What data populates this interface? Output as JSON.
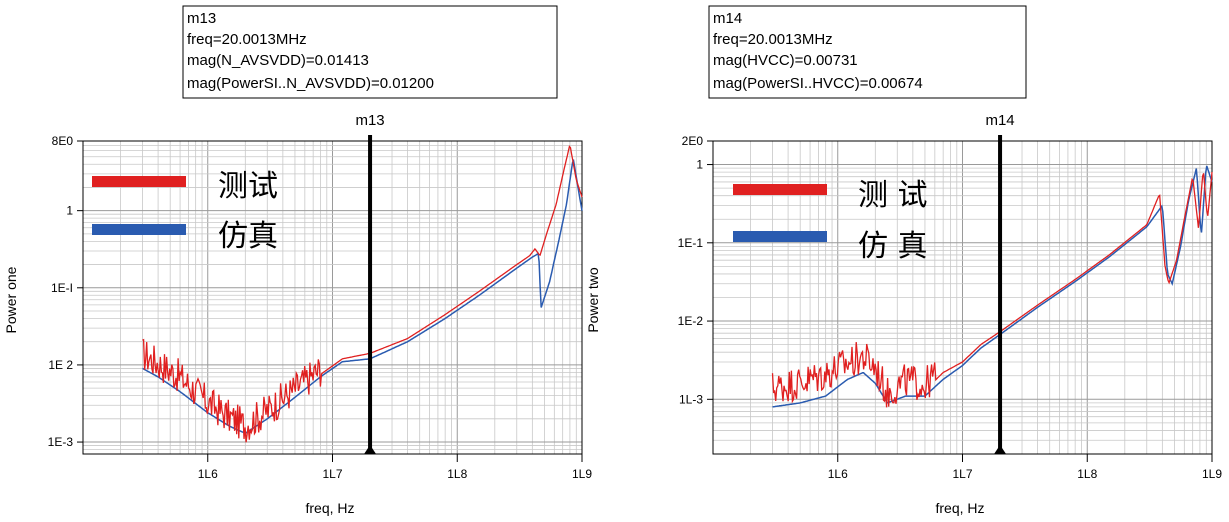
{
  "chart_data": [
    {
      "type": "line",
      "x_scale": "log",
      "y_scale": "log",
      "xlabel": "freq, Hz",
      "ylabel": "Power one",
      "ylim": [
        0.0007,
        8
      ],
      "xlim": [
        100000,
        1000000000
      ],
      "y_ticks": [
        {
          "v": 8,
          "label": "8E0"
        },
        {
          "v": 1,
          "label": "1"
        },
        {
          "v": 0.1,
          "label": "1E-I"
        },
        {
          "v": 0.01,
          "label": "1E 2"
        },
        {
          "v": 0.001,
          "label": "1E-3"
        }
      ],
      "x_ticks": [
        {
          "v": 1000000,
          "label": "1L6"
        },
        {
          "v": 10000000,
          "label": "1L7"
        },
        {
          "v": 100000000,
          "label": "1L8"
        },
        {
          "v": 1000000000,
          "label": "1L9"
        }
      ],
      "legend": [
        {
          "name": "测试",
          "color": "#e02020"
        },
        {
          "name": "仿真",
          "color": "#2a5bb0"
        }
      ],
      "marker": {
        "name": "m13",
        "x": 20001300,
        "lines": [
          "m13",
          "freq=20.0013MHz",
          "mag(N_AVSVDD)=0.01413",
          "mag(PowerSI..N_AVSVDD)=0.01200"
        ]
      },
      "series": [
        {
          "name": "测试",
          "color": "#e02020",
          "x": [
            300000,
            400000,
            600000,
            1000000,
            1500000,
            2000000,
            3000000,
            5000000,
            8000000,
            12000000,
            20000000,
            40000000,
            80000000,
            150000000,
            300000000,
            380000000,
            420000000,
            460000000,
            520000000,
            620000000,
            720000000,
            800000000,
            900000000,
            1000000000
          ],
          "y": [
            0.012,
            0.009,
            0.006,
            0.0028,
            0.0018,
            0.0014,
            0.0022,
            0.0042,
            0.0075,
            0.012,
            0.01413,
            0.022,
            0.045,
            0.09,
            0.2,
            0.26,
            0.32,
            0.26,
            0.5,
            1.2,
            3.5,
            7.2,
            2.5,
            1.5
          ],
          "noise_range": [
            300000,
            8000000
          ]
        },
        {
          "name": "仿真",
          "color": "#2a5bb0",
          "x": [
            300000,
            400000,
            600000,
            1000000,
            1500000,
            2000000,
            3000000,
            5000000,
            8000000,
            12000000,
            20000000,
            40000000,
            80000000,
            150000000,
            300000000,
            400000000,
            450000000,
            470000000,
            550000000,
            650000000,
            750000000,
            850000000,
            950000000,
            1000000000
          ],
          "y": [
            0.009,
            0.007,
            0.0045,
            0.0024,
            0.0016,
            0.0013,
            0.002,
            0.0038,
            0.007,
            0.011,
            0.012,
            0.02,
            0.04,
            0.08,
            0.18,
            0.25,
            0.28,
            0.055,
            0.12,
            0.4,
            1.2,
            4.8,
            1.6,
            1.0
          ]
        }
      ]
    },
    {
      "type": "line",
      "x_scale": "log",
      "y_scale": "log",
      "xlabel": "freq, Hz",
      "ylabel": "Power two",
      "ylim": [
        0.0002,
        2
      ],
      "xlim": [
        100000,
        1000000000
      ],
      "y_ticks": [
        {
          "v": 2,
          "label": "2E0"
        },
        {
          "v": 1,
          "label": "1"
        },
        {
          "v": 0.1,
          "label": "1E-1"
        },
        {
          "v": 0.01,
          "label": "1E-2"
        },
        {
          "v": 0.001,
          "label": "1L-3"
        }
      ],
      "x_ticks": [
        {
          "v": 1000000,
          "label": "1L6"
        },
        {
          "v": 10000000,
          "label": "1L7"
        },
        {
          "v": 100000000,
          "label": "1L8"
        },
        {
          "v": 1000000000,
          "label": "1L9"
        }
      ],
      "legend": [
        {
          "name": "测 试",
          "color": "#e02020"
        },
        {
          "name": "仿 真",
          "color": "#2a5bb0"
        }
      ],
      "marker": {
        "name": "m14",
        "x": 20001300,
        "lines": [
          "m14",
          "freq=20.0013MHz",
          "mag(HVCC)=0.00731",
          "mag(PowerSI..HVCC)=0.00674"
        ]
      },
      "series": [
        {
          "name": "测 试",
          "color": "#e02020",
          "x": [
            300000,
            500000,
            800000,
            1200000,
            1600000,
            2000000,
            2500000,
            3500000,
            5000000,
            7000000,
            10000000,
            14000000,
            20000000,
            40000000,
            80000000,
            150000000,
            300000000,
            380000000,
            420000000,
            450000000,
            520000000,
            600000000,
            700000000,
            780000000,
            850000000,
            920000000,
            1000000000
          ],
          "y": [
            0.0012,
            0.0014,
            0.0018,
            0.0025,
            0.003,
            0.0022,
            0.001,
            0.0015,
            0.0013,
            0.0022,
            0.003,
            0.005,
            0.00731,
            0.016,
            0.034,
            0.07,
            0.17,
            0.42,
            0.05,
            0.03,
            0.06,
            0.2,
            0.7,
            0.15,
            0.9,
            0.2,
            0.8
          ],
          "noise_range": [
            300000,
            6000000
          ]
        },
        {
          "name": "仿 真",
          "color": "#2a5bb0",
          "x": [
            300000,
            500000,
            800000,
            1200000,
            1600000,
            2000000,
            2500000,
            3500000,
            5000000,
            7000000,
            10000000,
            14000000,
            20000000,
            40000000,
            80000000,
            150000000,
            300000000,
            400000000,
            440000000,
            480000000,
            560000000,
            650000000,
            750000000,
            820000000,
            900000000,
            1000000000
          ],
          "y": [
            0.0008,
            0.0009,
            0.0011,
            0.0018,
            0.0022,
            0.0016,
            0.0009,
            0.0011,
            0.0011,
            0.0018,
            0.0027,
            0.0045,
            0.00674,
            0.015,
            0.032,
            0.066,
            0.16,
            0.3,
            0.04,
            0.03,
            0.09,
            0.35,
            0.9,
            0.12,
            1.0,
            0.6
          ]
        }
      ]
    }
  ]
}
